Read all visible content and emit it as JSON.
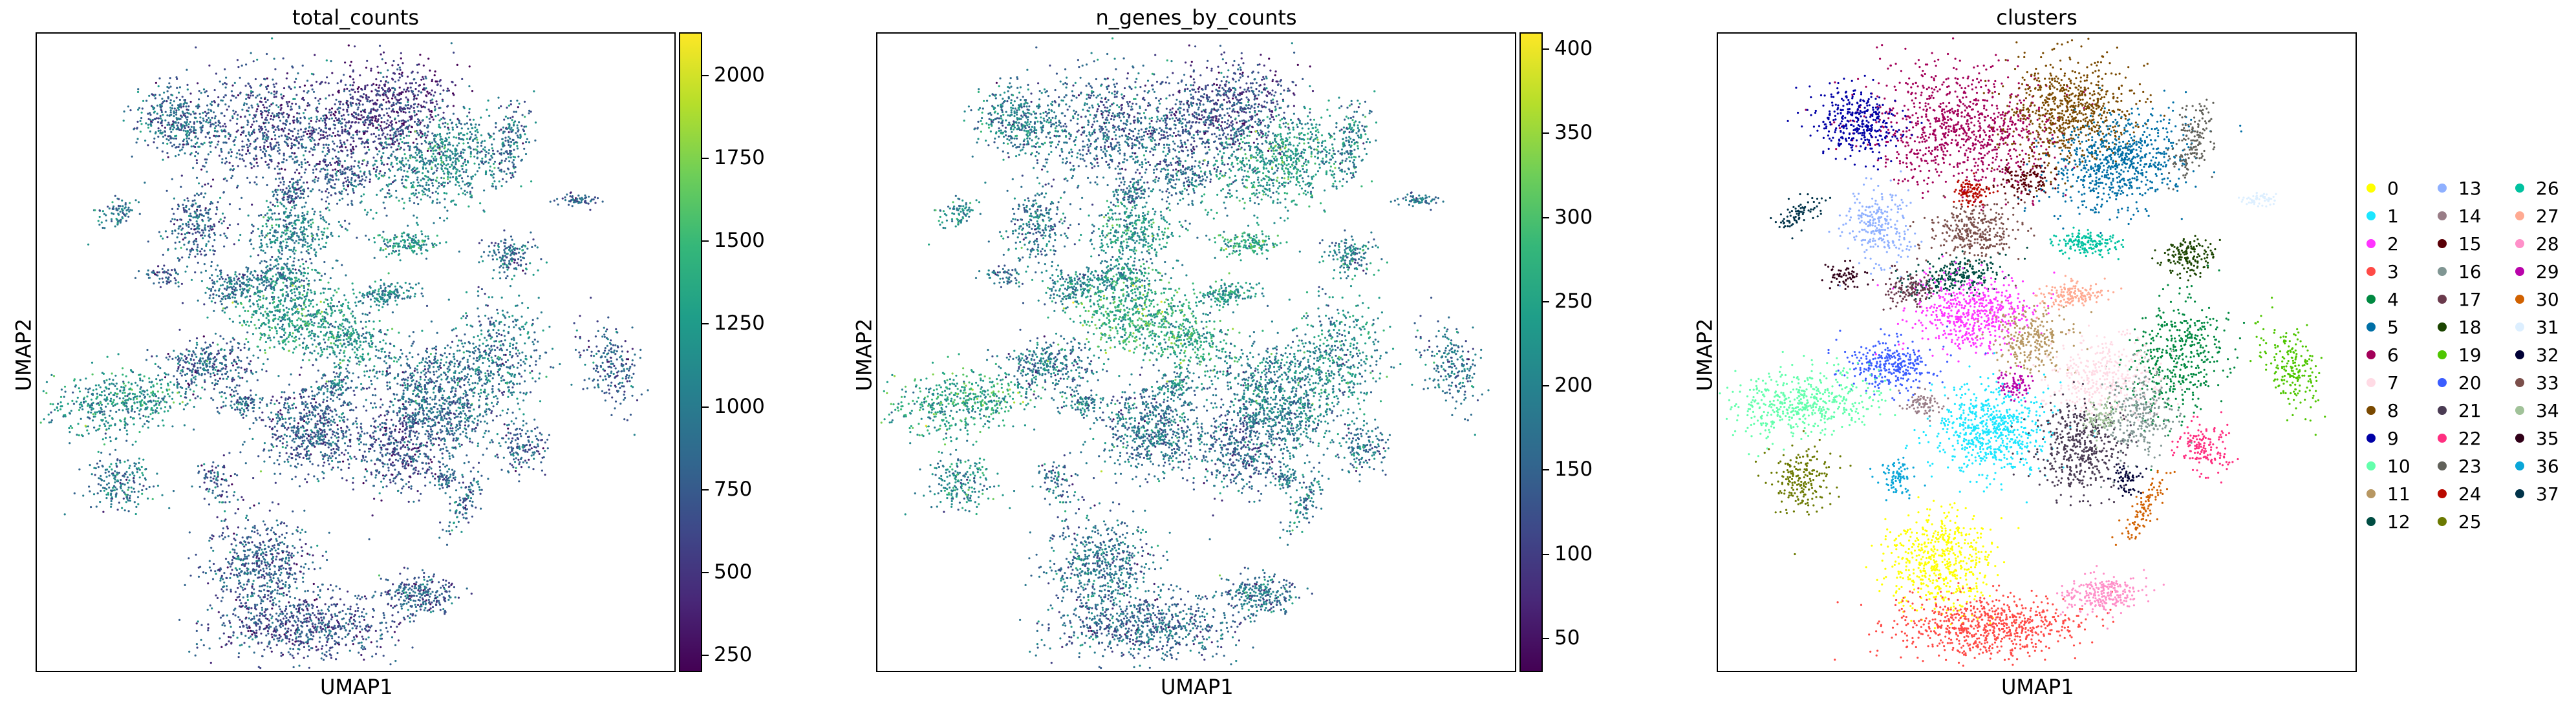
{
  "chart_data": [
    {
      "type": "scatter",
      "title": "total_counts",
      "xlabel": "UMAP1",
      "ylabel": "UMAP2",
      "color_by": "total_counts",
      "colormap": "viridis",
      "colorbar": {
        "min": 200,
        "max": 2130,
        "ticks": [
          250,
          500,
          750,
          1000,
          1250,
          1500,
          1750,
          2000
        ]
      }
    },
    {
      "type": "scatter",
      "title": "n_genes_by_counts",
      "xlabel": "UMAP1",
      "ylabel": "UMAP2",
      "color_by": "n_genes_by_counts",
      "colormap": "viridis",
      "colorbar": {
        "min": 30,
        "max": 410,
        "ticks": [
          50,
          100,
          150,
          200,
          250,
          300,
          350,
          400
        ]
      }
    },
    {
      "type": "scatter",
      "title": "clusters",
      "xlabel": "UMAP1",
      "ylabel": "UMAP2",
      "color_by": "clusters",
      "legend_placement": "right",
      "legend": [
        {
          "label": "0",
          "color": "#ffff00"
        },
        {
          "label": "1",
          "color": "#1ce6ff"
        },
        {
          "label": "2",
          "color": "#ff34ff"
        },
        {
          "label": "3",
          "color": "#ff4a46"
        },
        {
          "label": "4",
          "color": "#008941"
        },
        {
          "label": "5",
          "color": "#006fa6"
        },
        {
          "label": "6",
          "color": "#a30059"
        },
        {
          "label": "7",
          "color": "#ffdbe5"
        },
        {
          "label": "8",
          "color": "#7a4900"
        },
        {
          "label": "9",
          "color": "#0000a6"
        },
        {
          "label": "10",
          "color": "#63ffac"
        },
        {
          "label": "11",
          "color": "#b79762"
        },
        {
          "label": "12",
          "color": "#004d43"
        },
        {
          "label": "13",
          "color": "#8fb0ff"
        },
        {
          "label": "14",
          "color": "#997d87"
        },
        {
          "label": "15",
          "color": "#5a0007"
        },
        {
          "label": "16",
          "color": "#809693"
        },
        {
          "label": "17",
          "color": "#6a3a4c"
        },
        {
          "label": "18",
          "color": "#1b4400"
        },
        {
          "label": "19",
          "color": "#4fc601"
        },
        {
          "label": "20",
          "color": "#3b5dff"
        },
        {
          "label": "21",
          "color": "#4a3b53"
        },
        {
          "label": "22",
          "color": "#ff2f80"
        },
        {
          "label": "23",
          "color": "#61615a"
        },
        {
          "label": "24",
          "color": "#ba0900"
        },
        {
          "label": "25",
          "color": "#6b7900"
        },
        {
          "label": "26",
          "color": "#00c2a0"
        },
        {
          "label": "27",
          "color": "#ffaa92"
        },
        {
          "label": "28",
          "color": "#ff90c9"
        },
        {
          "label": "29",
          "color": "#b903aa"
        },
        {
          "label": "30",
          "color": "#d16100"
        },
        {
          "label": "31",
          "color": "#ddefff"
        },
        {
          "label": "32",
          "color": "#000035"
        },
        {
          "label": "33",
          "color": "#7b4f4b"
        },
        {
          "label": "34",
          "color": "#a1c299"
        },
        {
          "label": "35",
          "color": "#300018"
        },
        {
          "label": "36",
          "color": "#0aa6d8"
        },
        {
          "label": "37",
          "color": "#013349"
        }
      ]
    }
  ]
}
